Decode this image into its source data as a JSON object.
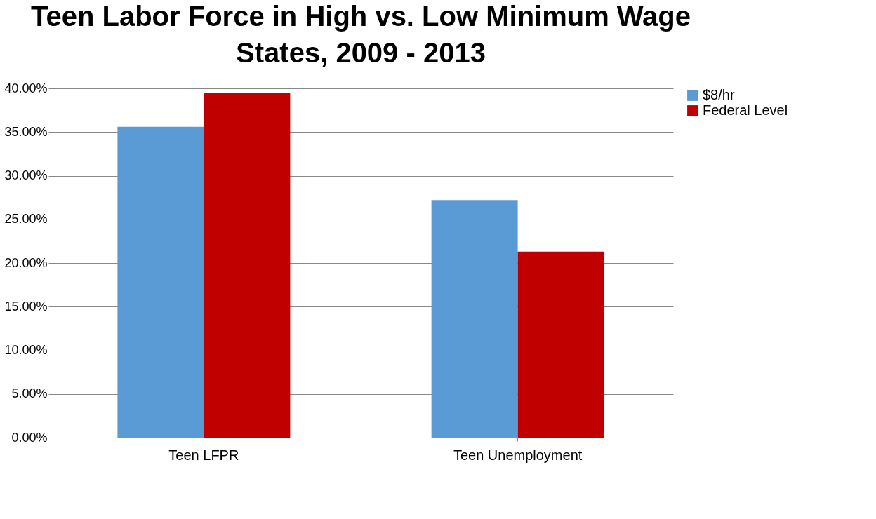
{
  "chart_data": {
    "type": "bar",
    "title": "Teen Labor Force in High vs. Low Minimum Wage States, 2009 - 2013",
    "categories": [
      "Teen LFPR",
      "Teen Unemployment"
    ],
    "series": [
      {
        "name": "$8/hr",
        "color": "#5b9bd5",
        "values": [
          35.6,
          27.2
        ]
      },
      {
        "name": "Federal Level",
        "color": "#c00000",
        "values": [
          39.5,
          21.3
        ]
      }
    ],
    "ylim": [
      0,
      40
    ],
    "yticks": [
      {
        "value": 0,
        "label": "0.00%"
      },
      {
        "value": 5,
        "label": "5.00%"
      },
      {
        "value": 10,
        "label": "10.00%"
      },
      {
        "value": 15,
        "label": "15.00%"
      },
      {
        "value": 20,
        "label": "20.00%"
      },
      {
        "value": 25,
        "label": "25.00%"
      },
      {
        "value": 30,
        "label": "30.00%"
      },
      {
        "value": 35,
        "label": "35.00%"
      },
      {
        "value": 40,
        "label": "40.00%"
      }
    ],
    "grid": "y",
    "legend": "right"
  }
}
